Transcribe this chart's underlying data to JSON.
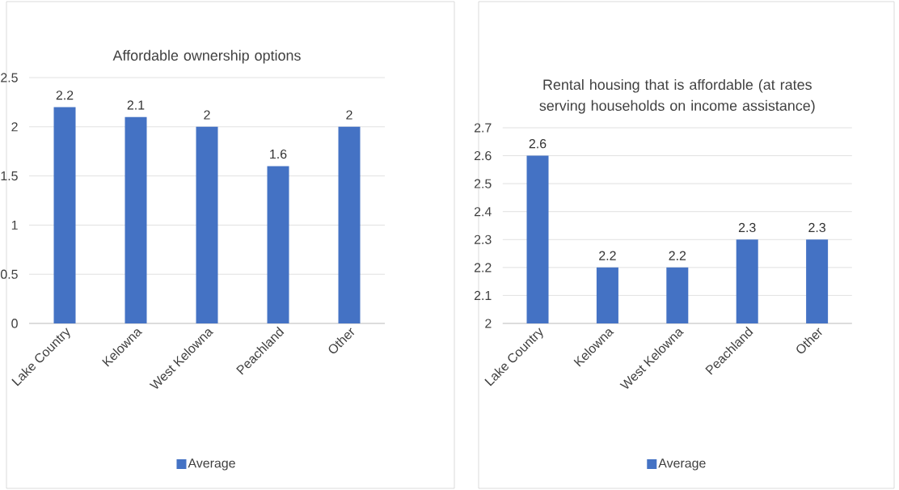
{
  "chart_data": [
    {
      "type": "bar",
      "title": "Affordable ownership options",
      "categories": [
        "Lake Country",
        "Kelowna",
        "West Kelowna",
        "Peachland",
        "Other"
      ],
      "series": [
        {
          "name": "Average",
          "color": "#4472c4",
          "values": [
            2.2,
            2.1,
            2,
            1.6,
            2
          ]
        }
      ],
      "ylim": [
        0,
        2.5
      ],
      "yticks": [
        0,
        0.5,
        1,
        1.5,
        2,
        2.5
      ],
      "grid": "y",
      "legend": "bottom",
      "data_labels": true
    },
    {
      "type": "bar",
      "title": "Rental housing that is affordable (at rates serving households on income assistance)",
      "categories": [
        "Lake Country",
        "Kelowna",
        "West Kelowna",
        "Peachland",
        "Other"
      ],
      "series": [
        {
          "name": "Average",
          "color": "#4472c4",
          "values": [
            2.6,
            2.2,
            2.2,
            2.3,
            2.3
          ]
        }
      ],
      "ylim": [
        2,
        2.7
      ],
      "yticks": [
        2,
        2.1,
        2.2,
        2.3,
        2.4,
        2.5,
        2.6,
        2.7
      ],
      "grid": "y",
      "legend": "bottom",
      "data_labels": true
    }
  ]
}
